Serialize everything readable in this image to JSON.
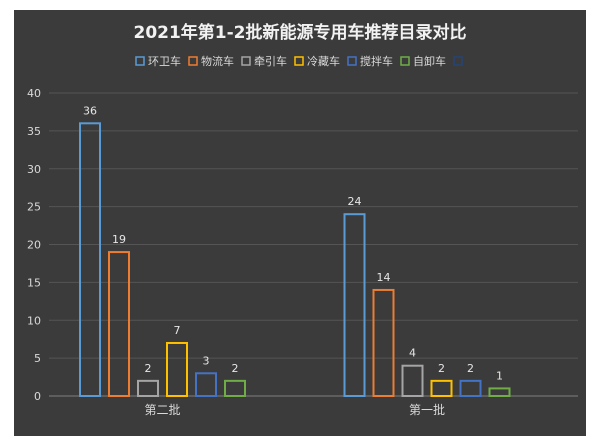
{
  "chart_data": {
    "type": "bar",
    "title": "2021年第1-2批新能源专用车推荐目录对比",
    "categories": [
      "第二批",
      "第一批"
    ],
    "series": [
      {
        "name": "环卫车",
        "color": "#5b9bd5",
        "values": [
          36,
          24
        ]
      },
      {
        "name": "物流车",
        "color": "#ed7d31",
        "values": [
          19,
          14
        ]
      },
      {
        "name": "牵引车",
        "color": "#a5a5a5",
        "values": [
          2,
          4
        ]
      },
      {
        "name": "冷藏车",
        "color": "#ffc000",
        "values": [
          7,
          2
        ]
      },
      {
        "name": "搅拌车",
        "color": "#4472c4",
        "values": [
          3,
          2
        ]
      },
      {
        "name": "自卸车",
        "color": "#70ad47",
        "values": [
          2,
          1
        ]
      },
      {
        "name": "",
        "color": "#264478",
        "values": [
          null,
          null
        ]
      }
    ],
    "ylim": [
      0,
      40
    ],
    "yticks": [
      0,
      5,
      10,
      15,
      20,
      25,
      30,
      35,
      40
    ],
    "xlabel": "",
    "ylabel": "",
    "grid": true,
    "legend_position": "top"
  }
}
